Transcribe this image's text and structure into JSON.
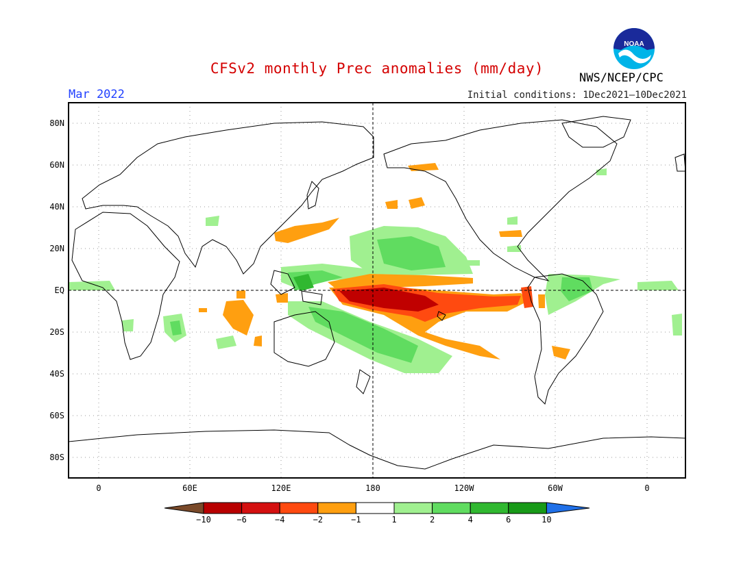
{
  "header": {
    "title": "CFSv2 monthly Prec anomalies (mm/day)",
    "month": "Mar 2022",
    "initial_conditions": "Initial conditions: 1Dec2021—10Dec2021",
    "agency": "NWS/NCEP/CPC",
    "logo_text": "NOAA"
  },
  "map": {
    "lat_labels": [
      "80N",
      "60N",
      "40N",
      "20N",
      "EQ",
      "20S",
      "40S",
      "60S",
      "80S"
    ],
    "lon_labels": [
      "0",
      "60E",
      "120E",
      "180",
      "120W",
      "60W",
      "0"
    ]
  },
  "colorbar": {
    "labels": [
      "-10",
      "-6",
      "-4",
      "-2",
      "-1",
      "1",
      "2",
      "4",
      "6",
      "10"
    ],
    "colors": [
      "#7a4a2a",
      "#b80000",
      "#d41010",
      "#ff4a10",
      "#ff9f10",
      "#ffffff",
      "#a0f090",
      "#60dc60",
      "#30b830",
      "#189a18",
      "#2070e8"
    ]
  },
  "colors": {
    "dry_orange": "#ff9f10",
    "dry_red": "#ff4a10",
    "dry_dark": "#c00000",
    "wet_light": "#a0f090",
    "wet_mid": "#60dc60",
    "wet_dark": "#30b830"
  }
}
